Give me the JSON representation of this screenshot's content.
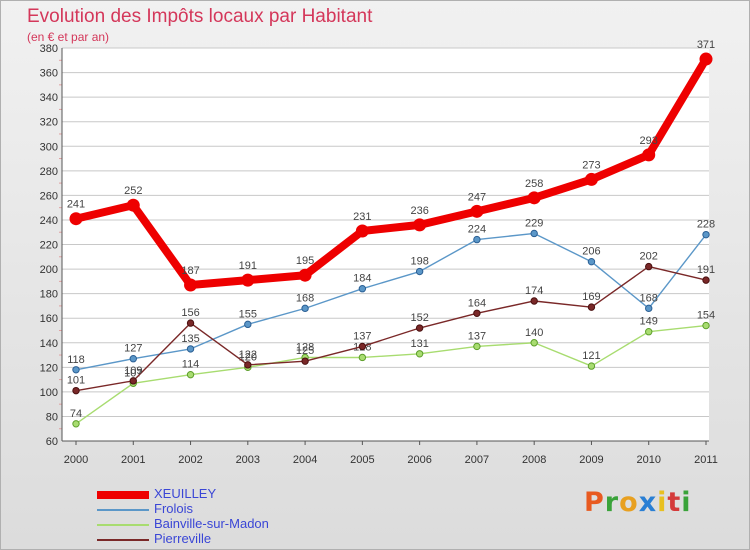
{
  "header": {
    "title": "Evolution des Impôts locaux par Habitant",
    "subtitle": "(en € et par an)"
  },
  "brand": {
    "letters": [
      "P",
      "r",
      "o",
      "x",
      "i",
      "t",
      "i"
    ],
    "colors": [
      "#e85a20",
      "#3aa33a",
      "#e8a020",
      "#2a7fd4",
      "#e8c020",
      "#d43a3a",
      "#3aa33a"
    ]
  },
  "colors": {
    "title": "#d4375a",
    "legend_text": "#3a46d6",
    "grid": "#c8c8c8"
  },
  "chart_data": {
    "type": "line",
    "categories": [
      "2000",
      "2001",
      "2002",
      "2003",
      "2004",
      "2005",
      "2006",
      "2007",
      "2008",
      "2009",
      "2010",
      "2011"
    ],
    "ylim": [
      60,
      380
    ],
    "yticks": [
      60,
      80,
      100,
      120,
      140,
      160,
      180,
      200,
      220,
      240,
      260,
      280,
      300,
      320,
      340,
      360,
      380
    ],
    "grid": "horizontal",
    "legend_position": "bottom-left",
    "series": [
      {
        "name": "XEUILLEY",
        "values": [
          241,
          252,
          187,
          191,
          195,
          231,
          236,
          247,
          258,
          273,
          293,
          371
        ],
        "color": "#ee0000",
        "marker_edge": "#ee0000",
        "emphasis": "thick"
      },
      {
        "name": "Frolois",
        "values": [
          118,
          127,
          135,
          155,
          168,
          184,
          198,
          224,
          229,
          206,
          168,
          228
        ],
        "color": "#5b97c8",
        "marker_edge": "#2b5f94",
        "emphasis": "thin"
      },
      {
        "name": "Bainville-sur-Madon",
        "values": [
          74,
          107,
          114,
          120,
          128,
          128,
          131,
          137,
          140,
          121,
          149,
          154
        ],
        "color": "#a8dc70",
        "marker_edge": "#5c9e2a",
        "emphasis": "thin"
      },
      {
        "name": "Pierreville",
        "values": [
          101,
          109,
          156,
          122,
          125,
          137,
          152,
          164,
          174,
          169,
          202,
          191
        ],
        "color": "#7a2828",
        "marker_edge": "#4a1010",
        "emphasis": "thin"
      }
    ]
  }
}
